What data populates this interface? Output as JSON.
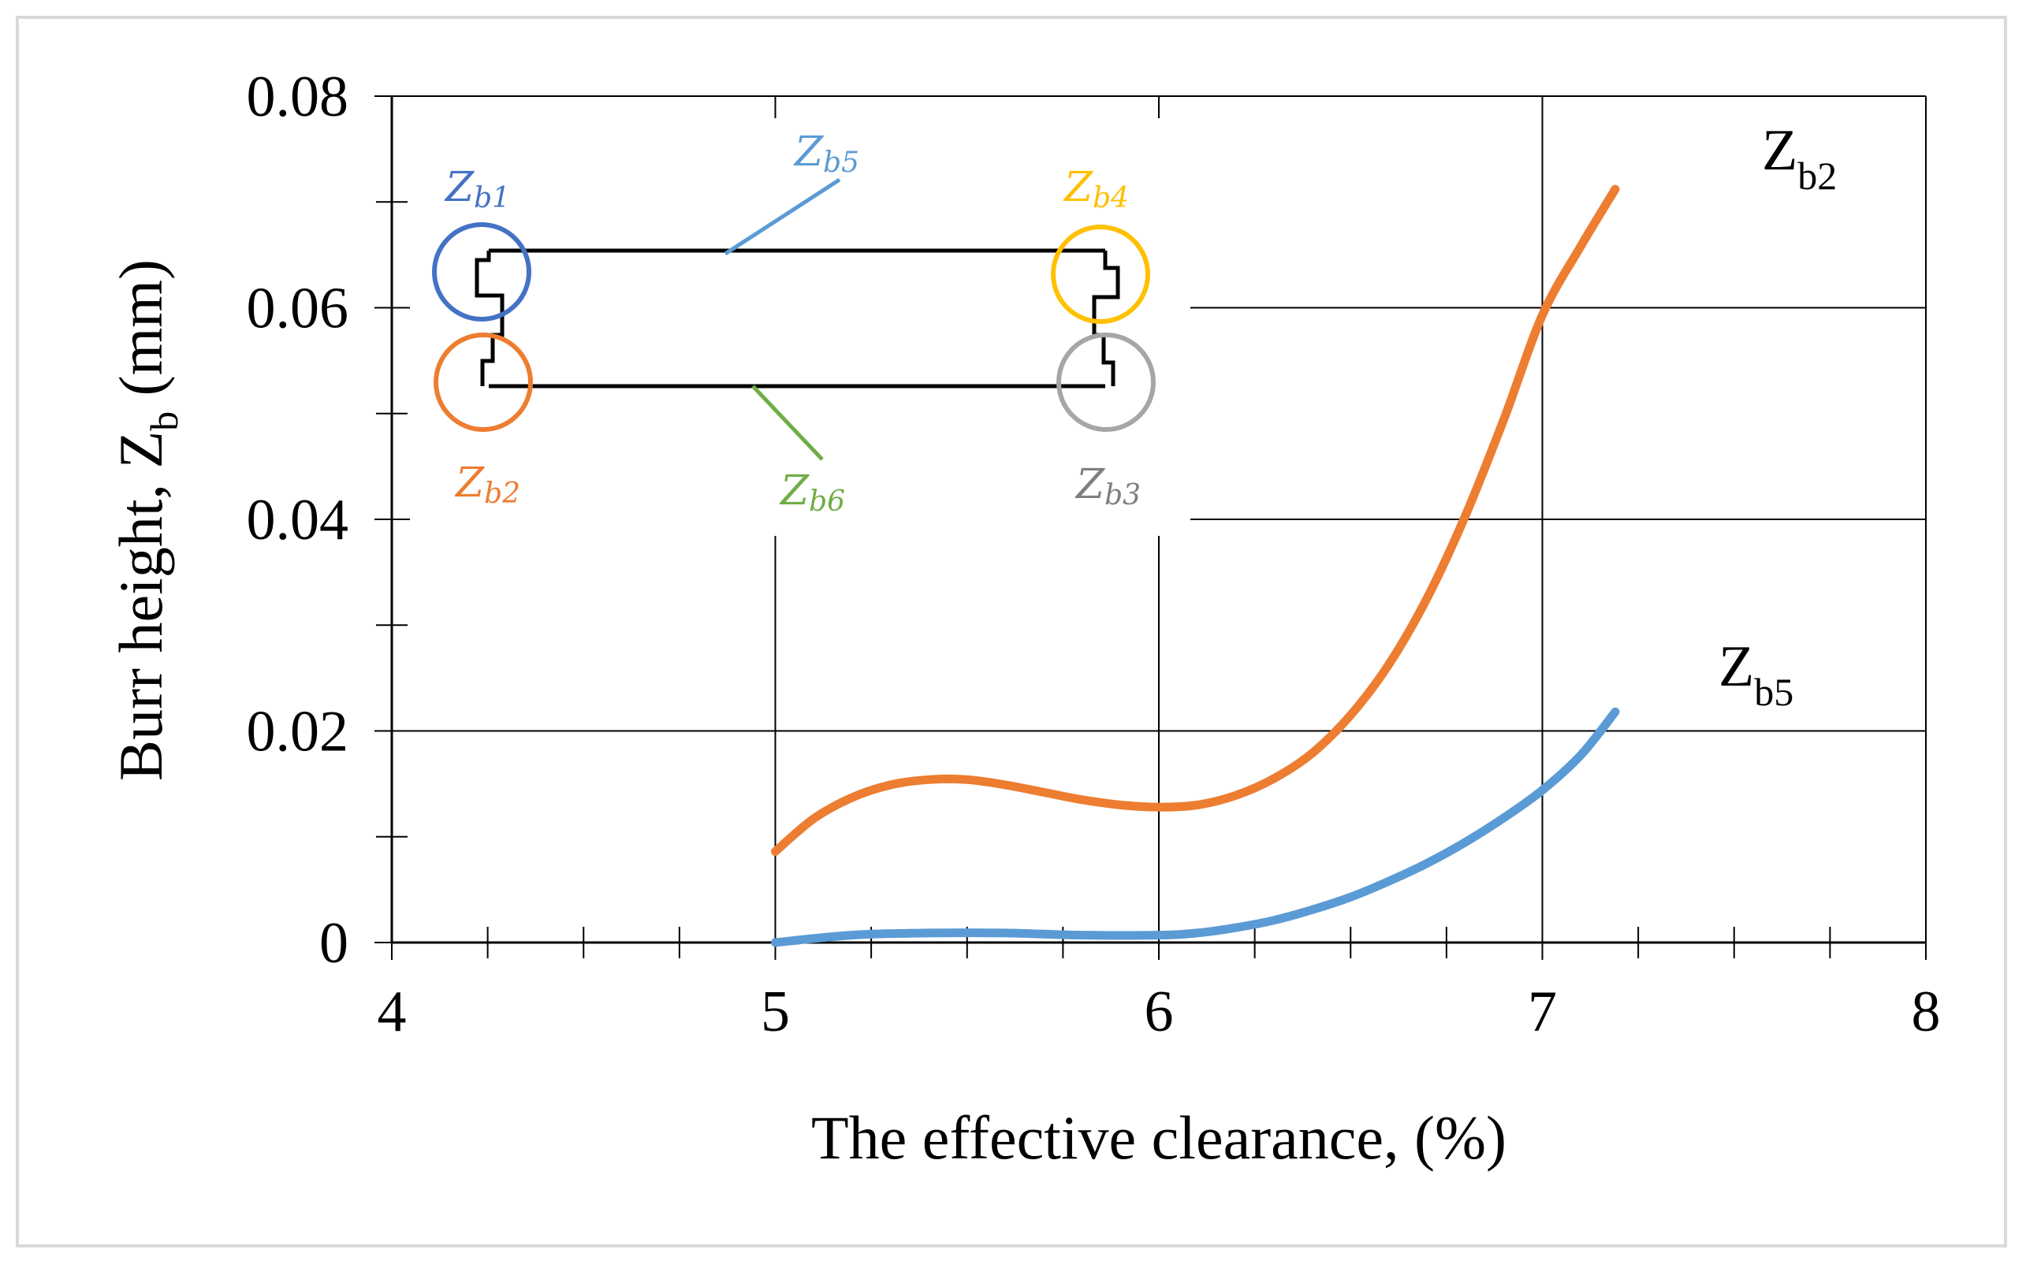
{
  "chart_data": {
    "type": "line",
    "xlabel": "The effective clearance, (%)",
    "ylabel_main": "Burr height, Z",
    "ylabel_sub": "b",
    "ylabel_unit": " (mm)",
    "xlim": [
      4,
      8
    ],
    "ylim": [
      0,
      0.08
    ],
    "x_ticks": [
      "4",
      "5",
      "6",
      "7",
      "8"
    ],
    "y_ticks": [
      "0",
      "0.02",
      "0.04",
      "0.06",
      "0.08"
    ],
    "grid": true,
    "series": [
      {
        "name_main": "Z",
        "name_sub": "b2",
        "color": "#ed7d31",
        "x": [
          5.0,
          5.1,
          5.2,
          5.3,
          5.4,
          5.5,
          5.6,
          5.7,
          5.8,
          5.9,
          6.0,
          6.1,
          6.2,
          6.3,
          6.4,
          6.5,
          6.6,
          6.7,
          6.8,
          6.9,
          7.0,
          7.1,
          7.19
        ],
        "y": [
          0.0086,
          0.0117,
          0.0137,
          0.0149,
          0.0154,
          0.0154,
          0.0149,
          0.0142,
          0.0135,
          0.013,
          0.0128,
          0.013,
          0.0139,
          0.0155,
          0.0179,
          0.0215,
          0.0263,
          0.0326,
          0.0404,
          0.0495,
          0.0593,
          0.0658,
          0.0712
        ]
      },
      {
        "name_main": "Z",
        "name_sub": "b5",
        "color": "#5b9bd5",
        "x": [
          5.0,
          5.2,
          5.4,
          5.6,
          5.8,
          6.0,
          6.1,
          6.2,
          6.3,
          6.4,
          6.5,
          6.6,
          6.7,
          6.8,
          6.9,
          7.0,
          7.1,
          7.19
        ],
        "y": [
          0.0,
          0.0007,
          0.0009,
          0.0009,
          0.0007,
          0.0007,
          0.0009,
          0.0014,
          0.0021,
          0.0031,
          0.0043,
          0.0058,
          0.0075,
          0.0095,
          0.0118,
          0.0144,
          0.0177,
          0.0218
        ]
      }
    ],
    "inset": {
      "labels": [
        {
          "main": "Z",
          "sub": "b1",
          "color": "#4472c4"
        },
        {
          "main": "Z",
          "sub": "b5",
          "color": "#5b9bd5"
        },
        {
          "main": "Z",
          "sub": "b4",
          "color": "#ffc000"
        },
        {
          "main": "Z",
          "sub": "b2",
          "color": "#ed7d31"
        },
        {
          "main": "Z",
          "sub": "b6",
          "color": "#70ad47"
        },
        {
          "main": "Z",
          "sub": "b3",
          "color": "#7f7f7f"
        }
      ]
    }
  }
}
